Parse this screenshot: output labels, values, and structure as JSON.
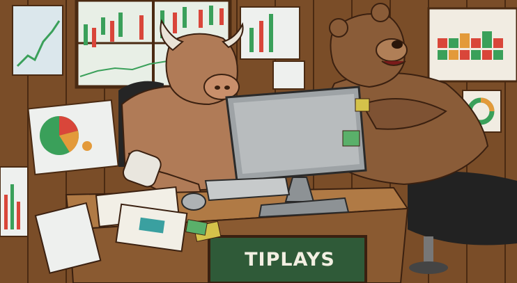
{
  "desk_sign": {
    "text": "TIPLAYS"
  },
  "colors": {
    "wood_dark": "#5a3519",
    "wood_mid": "#8a5a31",
    "wood_light": "#b07a45",
    "bull_skin": "#b07b57",
    "bear_fur": "#8a5c38",
    "monitor": "#9ea3a6",
    "sign_green": "#2f5a38",
    "chart_green": "#3aa05a",
    "chart_red": "#d9463a"
  },
  "icons": [
    "bull-figure",
    "bear-figure",
    "computer-monitor",
    "keyboard",
    "mouse",
    "pie-chart-poster",
    "candlestick-window-chart",
    "heatmap-poster",
    "donut-chart-poster"
  ]
}
